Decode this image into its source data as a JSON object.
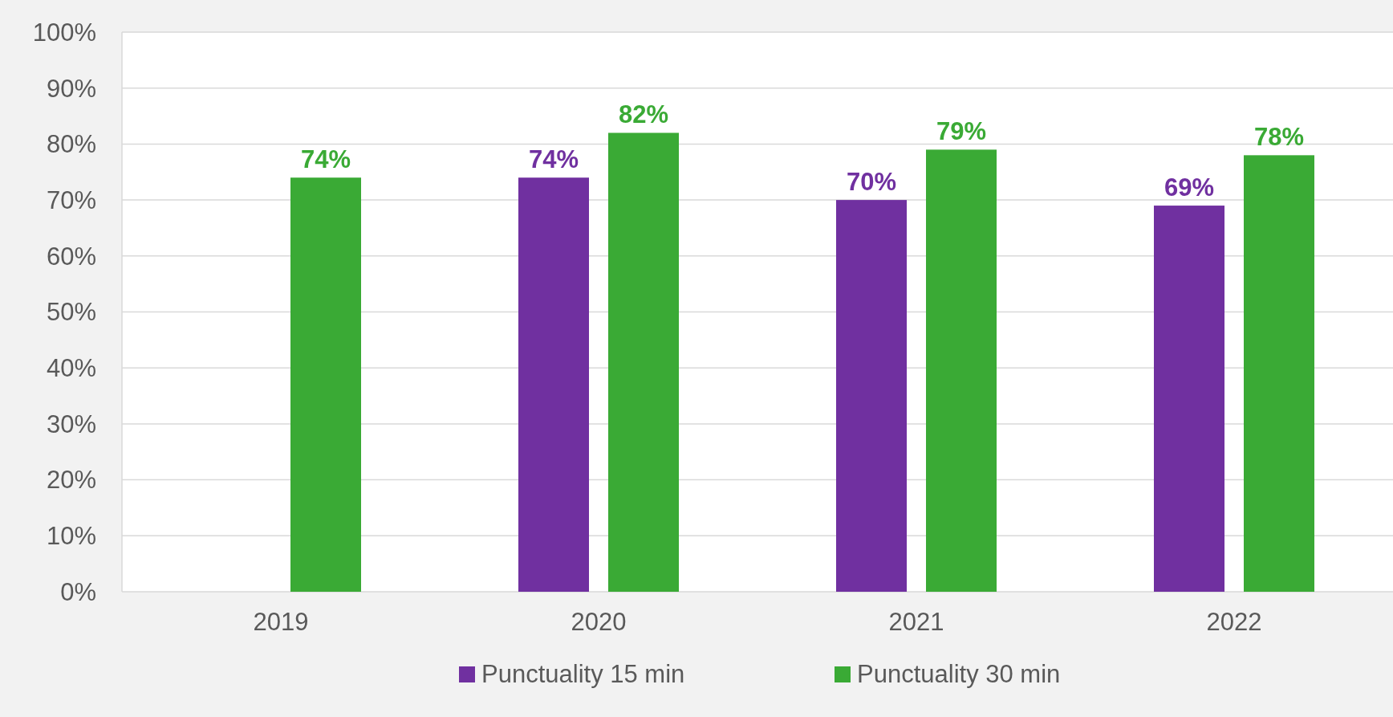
{
  "chart_data": {
    "type": "bar",
    "categories": [
      "2019",
      "2020",
      "2021",
      "2022"
    ],
    "series": [
      {
        "name": "Punctuality 15 min",
        "color": "#7030a0",
        "values": [
          null,
          74,
          70,
          69
        ],
        "value_labels": [
          null,
          "74%",
          "70%",
          "69%"
        ]
      },
      {
        "name": "Punctuality 30 min",
        "color": "#3aaa35",
        "values": [
          74,
          82,
          79,
          78
        ],
        "value_labels": [
          "74%",
          "82%",
          "79%",
          "78%"
        ]
      }
    ],
    "ylim": [
      0,
      100
    ],
    "yticks": [
      {
        "value": 0,
        "label": "0%"
      },
      {
        "value": 10,
        "label": "10%"
      },
      {
        "value": 20,
        "label": "20%"
      },
      {
        "value": 30,
        "label": "30%"
      },
      {
        "value": 40,
        "label": "40%"
      },
      {
        "value": 50,
        "label": "50%"
      },
      {
        "value": 60,
        "label": "60%"
      },
      {
        "value": 70,
        "label": "70%"
      },
      {
        "value": 80,
        "label": "80%"
      },
      {
        "value": 90,
        "label": "90%"
      },
      {
        "value": 100,
        "label": "100%"
      }
    ],
    "grid": "y",
    "legend": "bottom"
  }
}
